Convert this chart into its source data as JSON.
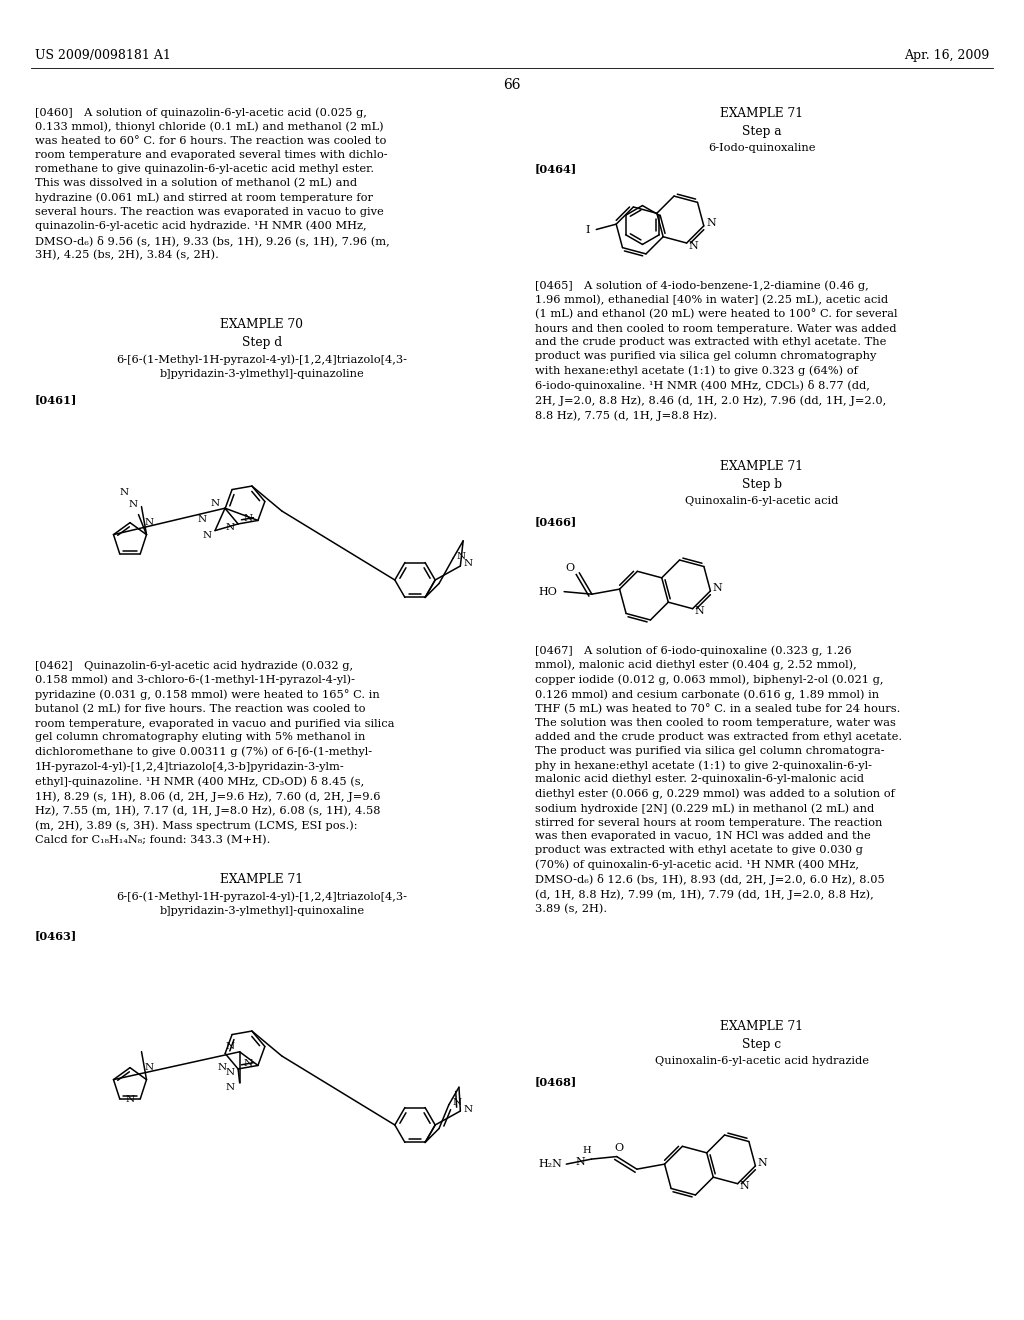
{
  "header_left": "US 2009/0098181 A1",
  "header_right": "Apr. 16, 2009",
  "page_number": "66",
  "bg": "#ffffff",
  "para0460": "[0460] A solution of quinazolin-6-yl-acetic acid (0.025 g,\n0.133 mmol), thionyl chloride (0.1 mL) and methanol (2 mL)\nwas heated to 60° C. for 6 hours. The reaction was cooled to\nroom temperature and evaporated several times with dichlo-\nromethane to give quinazolin-6-yl-acetic acid methyl ester.\nThis was dissolved in a solution of methanol (2 mL) and\nhydrazine (0.061 mL) and stirred at room temperature for\nseveral hours. The reaction was evaporated in vacuo to give\nquinazolin-6-yl-acetic acid hydrazide. ¹H NMR (400 MHz,\nDMSO-d₆) δ 9.56 (s, 1H), 9.33 (bs, 1H), 9.26 (s, 1H), 7.96 (m,\n3H), 4.25 (bs, 2H), 3.84 (s, 2H).",
  "ex70": "EXAMPLE 70",
  "step_d": "Step d",
  "name461": "6-[6-(1-Methyl-1H-pyrazol-4-yl)-[1,2,4]triazolo[4,3-\nb]pyridazin-3-ylmethyl]-quinazoline",
  "lbl461": "[0461]",
  "para0462": "[0462] Quinazolin-6-yl-acetic acid hydrazide (0.032 g,\n0.158 mmol) and 3-chloro-6-(1-methyl-1H-pyrazol-4-yl)-\npyridazine (0.031 g, 0.158 mmol) were heated to 165° C. in\nbutanol (2 mL) for five hours. The reaction was cooled to\nroom temperature, evaporated in vacuo and purified via silica\ngel column chromatography eluting with 5% methanol in\ndichloromethane to give 0.00311 g (7%) of 6-[6-(1-methyl-\n1H-pyrazol-4-yl)-[1,2,4]triazolo[4,3-b]pyridazin-3-ylm-\nethyl]-quinazoline. ¹H NMR (400 MHz, CD₃OD) δ 8.45 (s,\n1H), 8.29 (s, 1H), 8.06 (d, 2H, J=9.6 Hz), 7.60 (d, 2H, J=9.6\nHz), 7.55 (m, 1H), 7.17 (d, 1H, J=8.0 Hz), 6.08 (s, 1H), 4.58\n(m, 2H), 3.89 (s, 3H). Mass spectrum (LCMS, ESI pos.):\nCalcd for C₁₈H₁₄N₈; found: 343.3 (M+H).",
  "ex71a": "EXAMPLE 71",
  "name463": "6-[6-(1-Methyl-1H-pyrazol-4-yl)-[1,2,4]triazolo[4,3-\nb]pyridazin-3-ylmethyl]-quinoxaline",
  "lbl463": "[0463]",
  "ex71_right": "EXAMPLE 71",
  "step_a": "Step a",
  "name464": "6-Iodo-quinoxaline",
  "lbl464": "[0464]",
  "para0465": "[0465] A solution of 4-iodo-benzene-1,2-diamine (0.46 g,\n1.96 mmol), ethanedial [40% in water] (2.25 mL), acetic acid\n(1 mL) and ethanol (20 mL) were heated to 100° C. for several\nhours and then cooled to room temperature. Water was added\nand the crude product was extracted with ethyl acetate. The\nproduct was purified via silica gel column chromatography\nwith hexane:ethyl acetate (1:1) to give 0.323 g (64%) of\n6-iodo-quinoxaline. ¹H NMR (400 MHz, CDCl₃) δ 8.77 (dd,\n2H, J=2.0, 8.8 Hz), 8.46 (d, 1H, 2.0 Hz), 7.96 (dd, 1H, J=2.0,\n8.8 Hz), 7.75 (d, 1H, J=8.8 Hz).",
  "ex71b_right": "EXAMPLE 71",
  "step_b": "Step b",
  "name466": "Quinoxalin-6-yl-acetic acid",
  "lbl466": "[0466]",
  "para0467": "[0467] A solution of 6-iodo-quinoxaline (0.323 g, 1.26\nmmol), malonic acid diethyl ester (0.404 g, 2.52 mmol),\ncopper iodide (0.012 g, 0.063 mmol), biphenyl-2-ol (0.021 g,\n0.126 mmol) and cesium carbonate (0.616 g, 1.89 mmol) in\nTHF (5 mL) was heated to 70° C. in a sealed tube for 24 hours.\nThe solution was then cooled to room temperature, water was\nadded and the crude product was extracted from ethyl acetate.\nThe product was purified via silica gel column chromatogra-\nphy in hexane:ethyl acetate (1:1) to give 2-quinoxalin-6-yl-\nmalonic acid diethyl ester. 2-quinoxalin-6-yl-malonic acid\ndiethyl ester (0.066 g, 0.229 mmol) was added to a solution of\nsodium hydroxide [2N] (0.229 mL) in methanol (2 mL) and\nstirred for several hours at room temperature. The reaction\nwas then evaporated in vacuo, 1N HCl was added and the\nproduct was extracted with ethyl acetate to give 0.030 g\n(70%) of quinoxalin-6-yl-acetic acid. ¹H NMR (400 MHz,\nDMSO-d₆) δ 12.6 (bs, 1H), 8.93 (dd, 2H, J=2.0, 6.0 Hz), 8.05\n(d, 1H, 8.8 Hz), 7.99 (m, 1H), 7.79 (dd, 1H, J=2.0, 8.8 Hz),\n3.89 (s, 2H).",
  "ex71c_right": "EXAMPLE 71",
  "step_c": "Step c",
  "name468": "Quinoxalin-6-yl-acetic acid hydrazide",
  "lbl468": "[0468]"
}
